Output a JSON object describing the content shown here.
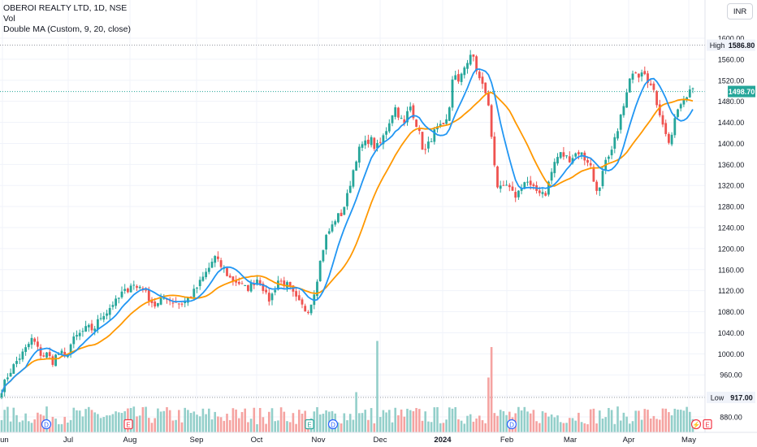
{
  "legend": {
    "title": "OBEROI REALTY LTD, 1D, NSE",
    "vol": "Vol",
    "indicator": "Double MA (Custom, 9, 20, close)"
  },
  "currency": "INR",
  "colors": {
    "up": "#26a69a",
    "down": "#ef5350",
    "vol_up": "#93cfca",
    "vol_down": "#f5a3a1",
    "ma_fast": "#2196f3",
    "ma_slow": "#ff9800",
    "last": "#26a69a"
  },
  "chart_data": {
    "type": "candlestick",
    "y_ticks": [
      880,
      920,
      960,
      1000,
      1040,
      1080,
      1120,
      1160,
      1200,
      1240,
      1280,
      1320,
      1360,
      1400,
      1440,
      1480,
      1520,
      1560,
      1600
    ],
    "tick_labels": [
      "880.00",
      "920.00",
      "960.00",
      "1000.00",
      "1040.00",
      "1080.00",
      "1120.00",
      "1160.00",
      "1200.00",
      "1240.00",
      "1280.00",
      "1320.00",
      "1360.00",
      "1400.00",
      "1440.00",
      "1480.00",
      "1520.00",
      "1560.00",
      "1600.00"
    ],
    "x_labels": [
      "Jun",
      "Jul",
      "Aug",
      "Sep",
      "Oct",
      "Nov",
      "Dec",
      "2024",
      "Feb",
      "Mar",
      "Apr",
      "May"
    ],
    "high": {
      "label": "High",
      "value": 1586.8,
      "text": "1586.80"
    },
    "low": {
      "label": "Low",
      "value": 917.0,
      "text": "917.00"
    },
    "last": {
      "value": 1498.7,
      "text": "1498.70"
    },
    "close_path": [
      [
        0,
        925
      ],
      [
        10,
        960
      ],
      [
        20,
        985
      ],
      [
        30,
        1005
      ],
      [
        40,
        1030
      ],
      [
        46,
        1010
      ],
      [
        52,
        995
      ],
      [
        58,
        1000
      ],
      [
        65,
        985
      ],
      [
        70,
        1000
      ],
      [
        76,
        1000
      ],
      [
        80,
        990
      ],
      [
        86,
        1015
      ],
      [
        92,
        1030
      ],
      [
        100,
        1040
      ],
      [
        108,
        1050
      ],
      [
        115,
        1045
      ],
      [
        120,
        1060
      ],
      [
        126,
        1075
      ],
      [
        132,
        1080
      ],
      [
        138,
        1095
      ],
      [
        144,
        1100
      ],
      [
        150,
        1115
      ],
      [
        156,
        1120
      ],
      [
        162,
        1135
      ],
      [
        168,
        1125
      ],
      [
        174,
        1130
      ],
      [
        180,
        1115
      ],
      [
        186,
        1100
      ],
      [
        192,
        1090
      ],
      [
        198,
        1100
      ],
      [
        204,
        1110
      ],
      [
        210,
        1100
      ],
      [
        216,
        1100
      ],
      [
        222,
        1095
      ],
      [
        228,
        1100
      ],
      [
        234,
        1110
      ],
      [
        240,
        1120
      ],
      [
        246,
        1135
      ],
      [
        252,
        1150
      ],
      [
        258,
        1165
      ],
      [
        264,
        1185
      ],
      [
        270,
        1170
      ],
      [
        276,
        1160
      ],
      [
        282,
        1145
      ],
      [
        288,
        1140
      ],
      [
        294,
        1135
      ],
      [
        300,
        1125
      ],
      [
        306,
        1125
      ],
      [
        312,
        1135
      ],
      [
        318,
        1145
      ],
      [
        324,
        1125
      ],
      [
        330,
        1100
      ],
      [
        336,
        1115
      ],
      [
        342,
        1140
      ],
      [
        348,
        1135
      ],
      [
        354,
        1130
      ],
      [
        360,
        1115
      ],
      [
        366,
        1100
      ],
      [
        372,
        1090
      ],
      [
        378,
        1080
      ],
      [
        384,
        1100
      ],
      [
        390,
        1140
      ],
      [
        396,
        1190
      ],
      [
        402,
        1225
      ],
      [
        408,
        1240
      ],
      [
        414,
        1260
      ],
      [
        420,
        1265
      ],
      [
        426,
        1290
      ],
      [
        432,
        1330
      ],
      [
        438,
        1370
      ],
      [
        444,
        1395
      ],
      [
        450,
        1400
      ],
      [
        456,
        1410
      ],
      [
        462,
        1390
      ],
      [
        468,
        1400
      ],
      [
        474,
        1420
      ],
      [
        480,
        1445
      ],
      [
        486,
        1470
      ],
      [
        492,
        1450
      ],
      [
        498,
        1435
      ],
      [
        504,
        1475
      ],
      [
        510,
        1450
      ],
      [
        516,
        1420
      ],
      [
        522,
        1380
      ],
      [
        528,
        1400
      ],
      [
        534,
        1420
      ],
      [
        540,
        1430
      ],
      [
        546,
        1430
      ],
      [
        552,
        1450
      ],
      [
        558,
        1540
      ],
      [
        564,
        1510
      ],
      [
        570,
        1545
      ],
      [
        576,
        1555
      ],
      [
        582,
        1570
      ],
      [
        588,
        1530
      ],
      [
        594,
        1510
      ],
      [
        600,
        1490
      ],
      [
        606,
        1400
      ],
      [
        612,
        1320
      ],
      [
        618,
        1310
      ],
      [
        624,
        1320
      ],
      [
        630,
        1305
      ],
      [
        636,
        1300
      ],
      [
        642,
        1320
      ],
      [
        648,
        1330
      ],
      [
        654,
        1315
      ],
      [
        660,
        1310
      ],
      [
        666,
        1310
      ],
      [
        672,
        1305
      ],
      [
        678,
        1340
      ],
      [
        684,
        1370
      ],
      [
        690,
        1380
      ],
      [
        696,
        1375
      ],
      [
        702,
        1370
      ],
      [
        708,
        1380
      ],
      [
        714,
        1385
      ],
      [
        720,
        1370
      ],
      [
        726,
        1365
      ],
      [
        732,
        1320
      ],
      [
        738,
        1310
      ],
      [
        744,
        1360
      ],
      [
        750,
        1370
      ],
      [
        756,
        1400
      ],
      [
        762,
        1440
      ],
      [
        768,
        1470
      ],
      [
        774,
        1510
      ],
      [
        780,
        1545
      ],
      [
        786,
        1530
      ],
      [
        792,
        1545
      ],
      [
        798,
        1520
      ],
      [
        804,
        1500
      ],
      [
        810,
        1470
      ],
      [
        816,
        1440
      ],
      [
        822,
        1400
      ],
      [
        828,
        1420
      ],
      [
        834,
        1465
      ],
      [
        840,
        1475
      ],
      [
        846,
        1490
      ],
      [
        852,
        1515
      ],
      [
        856,
        1498.7
      ]
    ],
    "volume_spikes": [
      [
        464,
        0.75
      ],
      [
        606,
        0.7
      ],
      [
        440,
        0.33
      ],
      [
        601,
        0.45
      ],
      [
        321,
        0.2
      ],
      [
        160,
        0.2
      ]
    ]
  }
}
